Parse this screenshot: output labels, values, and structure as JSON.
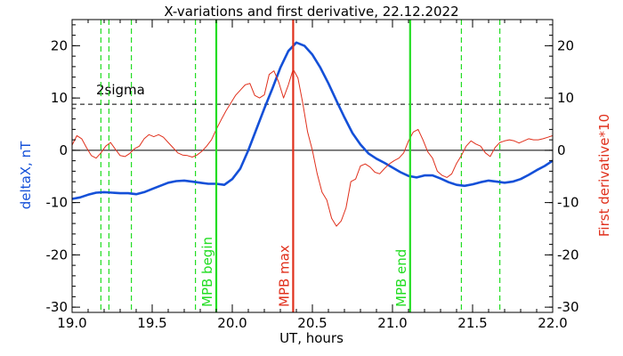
{
  "chart_data": {
    "type": "line",
    "title": "X-variations and first derivative, 22.12.2022",
    "xlabel": "UT, hours",
    "ylabel_left": "deltaX, nT",
    "ylabel_right": "First derivative*10",
    "xlim": [
      19.0,
      22.0
    ],
    "ylim": [
      -31,
      25
    ],
    "x_ticks": [
      19.0,
      19.5,
      20.0,
      20.5,
      21.0,
      21.5,
      22.0
    ],
    "x_tick_labels": [
      "19.0",
      "19.5",
      "20.0",
      "20.5",
      "21.0",
      "21.5",
      "22.0"
    ],
    "y_ticks": [
      -30,
      -20,
      -10,
      0,
      10,
      20
    ],
    "y_tick_labels": [
      "-30",
      "-20",
      "-10",
      "0",
      "10",
      "20"
    ],
    "grid": false,
    "colors": {
      "deltaX": "#1450d8",
      "derivative": "#e0301c",
      "mpb_max": "#e0301c",
      "mpb_bounds": "#22dd22",
      "dashed_green": "#22dd22",
      "sigma": "#000000",
      "zero": "#000000"
    },
    "sigma_level": 8.8,
    "sigma_label": "2sigma",
    "dashed_green_x": [
      19.18,
      19.23,
      19.37,
      19.77,
      21.43,
      21.67
    ],
    "markers": [
      {
        "x": 19.9,
        "label": "MPB begin",
        "kind": "mpb_bounds"
      },
      {
        "x": 20.38,
        "label": "MPB max",
        "kind": "mpb_max"
      },
      {
        "x": 21.11,
        "label": "MPB end",
        "kind": "mpb_bounds"
      }
    ],
    "series": [
      {
        "key": "deltaX",
        "x": [
          19.0,
          19.05,
          19.1,
          19.15,
          19.2,
          19.25,
          19.3,
          19.35,
          19.4,
          19.45,
          19.5,
          19.55,
          19.6,
          19.65,
          19.7,
          19.75,
          19.8,
          19.85,
          19.9,
          19.95,
          20.0,
          20.05,
          20.1,
          20.15,
          20.2,
          20.25,
          20.3,
          20.35,
          20.4,
          20.45,
          20.5,
          20.55,
          20.6,
          20.65,
          20.7,
          20.75,
          20.8,
          20.85,
          20.9,
          20.95,
          21.0,
          21.05,
          21.1,
          21.15,
          21.2,
          21.25,
          21.3,
          21.35,
          21.4,
          21.45,
          21.5,
          21.55,
          21.6,
          21.65,
          21.7,
          21.75,
          21.8,
          21.85,
          21.9,
          21.95,
          22.0
        ],
        "values": [
          -9.3,
          -9.0,
          -8.5,
          -8.1,
          -8.0,
          -8.1,
          -8.2,
          -8.2,
          -8.4,
          -8.0,
          -7.4,
          -6.8,
          -6.2,
          -5.9,
          -5.8,
          -6.0,
          -6.2,
          -6.4,
          -6.4,
          -6.6,
          -5.5,
          -3.5,
          0.0,
          4.0,
          8.0,
          11.8,
          15.8,
          19.0,
          20.6,
          20.0,
          18.3,
          15.8,
          12.8,
          9.5,
          6.3,
          3.3,
          1.1,
          -0.6,
          -1.6,
          -2.4,
          -3.3,
          -4.2,
          -4.9,
          -5.2,
          -4.8,
          -4.8,
          -5.4,
          -6.1,
          -6.6,
          -6.8,
          -6.5,
          -6.1,
          -5.8,
          -6.0,
          -6.2,
          -6.0,
          -5.5,
          -4.7,
          -3.8,
          -3.0,
          -2.0
        ]
      },
      {
        "key": "derivative",
        "x": [
          19.0,
          19.03,
          19.06,
          19.09,
          19.12,
          19.15,
          19.18,
          19.21,
          19.24,
          19.27,
          19.3,
          19.33,
          19.36,
          19.39,
          19.42,
          19.45,
          19.48,
          19.51,
          19.54,
          19.57,
          19.6,
          19.63,
          19.66,
          19.69,
          19.72,
          19.75,
          19.78,
          19.81,
          19.84,
          19.87,
          19.9,
          19.93,
          19.96,
          19.99,
          20.02,
          20.05,
          20.08,
          20.11,
          20.14,
          20.17,
          20.2,
          20.23,
          20.26,
          20.29,
          20.32,
          20.35,
          20.38,
          20.41,
          20.44,
          20.47,
          20.5,
          20.53,
          20.56,
          20.59,
          20.62,
          20.65,
          20.68,
          20.71,
          20.74,
          20.77,
          20.8,
          20.83,
          20.86,
          20.89,
          20.92,
          20.95,
          20.98,
          21.01,
          21.04,
          21.07,
          21.1,
          21.13,
          21.16,
          21.19,
          21.22,
          21.25,
          21.28,
          21.31,
          21.34,
          21.37,
          21.4,
          21.43,
          21.46,
          21.49,
          21.52,
          21.55,
          21.58,
          21.61,
          21.64,
          21.67,
          21.7,
          21.73,
          21.76,
          21.79,
          21.82,
          21.85,
          21.88,
          21.91,
          21.94,
          21.97,
          22.0
        ],
        "values": [
          1.0,
          2.8,
          2.2,
          0.5,
          -1.0,
          -1.5,
          -0.5,
          0.8,
          1.5,
          0.2,
          -1.0,
          -1.2,
          -0.6,
          0.3,
          0.8,
          2.2,
          3.0,
          2.6,
          3.0,
          2.5,
          1.5,
          0.5,
          -0.5,
          -0.9,
          -1.0,
          -1.3,
          -0.9,
          -0.2,
          0.8,
          2.0,
          4.0,
          5.8,
          7.5,
          9.0,
          10.5,
          11.5,
          12.5,
          12.8,
          10.5,
          10.0,
          10.6,
          14.5,
          15.2,
          13.0,
          10.0,
          12.5,
          15.5,
          13.8,
          9.0,
          3.5,
          0.0,
          -4.5,
          -8.0,
          -9.5,
          -13.0,
          -14.5,
          -13.5,
          -11.0,
          -6.0,
          -5.5,
          -3.0,
          -2.6,
          -3.2,
          -4.2,
          -4.5,
          -3.5,
          -2.6,
          -2.0,
          -1.5,
          -0.5,
          1.8,
          3.5,
          4.0,
          2.0,
          -0.3,
          -1.5,
          -4.0,
          -4.8,
          -5.2,
          -4.5,
          -2.5,
          -1.0,
          0.8,
          1.8,
          1.2,
          0.8,
          -0.5,
          -1.2,
          0.5,
          1.5,
          1.8,
          2.0,
          1.8,
          1.4,
          1.8,
          2.2,
          2.0,
          2.0,
          2.2,
          2.5,
          2.8
        ]
      }
    ]
  }
}
